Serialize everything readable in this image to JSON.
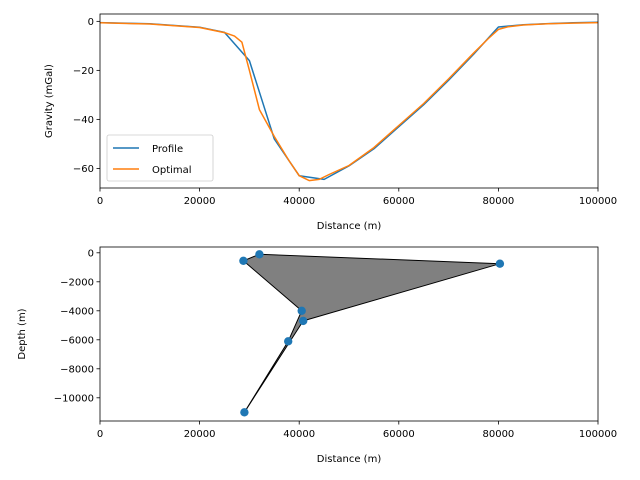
{
  "chart_data": [
    {
      "type": "line",
      "title": "",
      "xlabel": "Distance (m)",
      "ylabel": "Gravity (mGal)",
      "xlim": [
        0,
        100000
      ],
      "ylim": [
        -68,
        3
      ],
      "xticks": [
        0,
        20000,
        40000,
        60000,
        80000,
        100000
      ],
      "xtick_labels": [
        "0",
        "20000",
        "40000",
        "60000",
        "80000",
        "100000"
      ],
      "yticks": [
        0,
        -20,
        -40,
        -60
      ],
      "ytick_labels": [
        "0",
        "−20",
        "−40",
        "−60"
      ],
      "grid": false,
      "legend_position": "lower-left",
      "series": [
        {
          "name": "Profile",
          "color": "#1f77b4",
          "x": [
            0,
            10000,
            20000,
            25000,
            30000,
            35000,
            40000,
            45000,
            50000,
            55000,
            60000,
            65000,
            70000,
            75000,
            80000,
            85000,
            90000,
            95000,
            100000
          ],
          "y": [
            -0.5,
            -1,
            -2.4,
            -4.5,
            -16,
            -48,
            -63,
            -64.5,
            -59,
            -52,
            -43,
            -34,
            -24,
            -13.5,
            -2.3,
            -1.4,
            -0.9,
            -0.6,
            -0.4
          ]
        },
        {
          "name": "Optimal",
          "color": "#ff7f0e",
          "x": [
            0,
            10000,
            20000,
            25000,
            27000,
            28500,
            30000,
            32000,
            35000,
            38000,
            40000,
            42000,
            44000,
            46000,
            50000,
            55000,
            60000,
            65000,
            70000,
            75000,
            78000,
            80000,
            82000,
            85000,
            90000,
            95000,
            100000
          ],
          "y": [
            -0.6,
            -1.1,
            -2.5,
            -4.6,
            -6,
            -8.5,
            -20,
            -36,
            -47,
            -57,
            -63,
            -65,
            -64.5,
            -62.5,
            -58.8,
            -51.5,
            -42.5,
            -33.5,
            -23.5,
            -13,
            -7,
            -3.3,
            -2.2,
            -1.5,
            -1,
            -0.7,
            -0.5
          ]
        }
      ]
    },
    {
      "type": "scatter",
      "title": "",
      "xlabel": "Distance (m)",
      "ylabel": "Depth (m)",
      "xlim": [
        0,
        100000
      ],
      "ylim": [
        -11600,
        400
      ],
      "xticks": [
        0,
        20000,
        40000,
        60000,
        80000,
        100000
      ],
      "xtick_labels": [
        "0",
        "20000",
        "40000",
        "60000",
        "80000",
        "100000"
      ],
      "yticks": [
        0,
        -2000,
        -4000,
        -6000,
        -8000,
        -10000
      ],
      "ytick_labels": [
        "0",
        "−2000",
        "−4000",
        "−6000",
        "−8000",
        "−10000"
      ],
      "grid": false,
      "polygon_fill": "#808080",
      "polygon_edge": "#000000",
      "marker_color": "#1f77b4",
      "series": [
        {
          "x": [
            32000,
            80300,
            40800,
            29000,
            37800,
            40500,
            28800
          ],
          "y": [
            -100,
            -750,
            -4700,
            -11000,
            -6100,
            -4000,
            -550
          ]
        }
      ]
    }
  ]
}
